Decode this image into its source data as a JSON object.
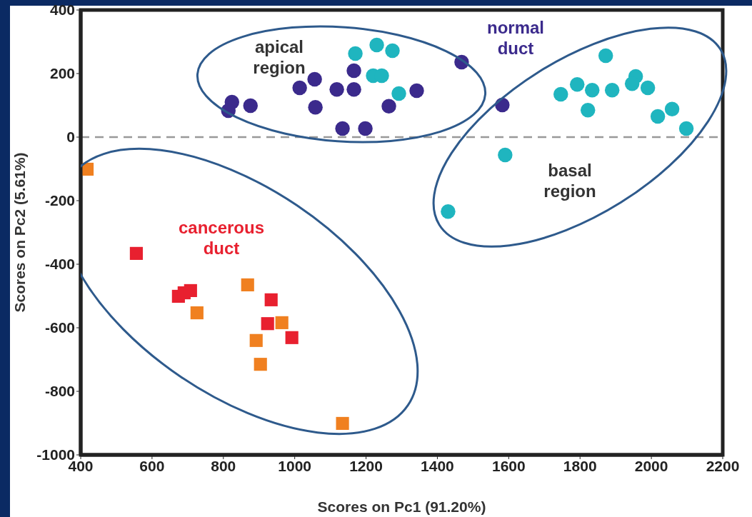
{
  "chart_data": {
    "type": "scatter",
    "xlabel": "Scores on Pc1 (91.20%)",
    "ylabel": "Scores on Pc2 (5.61%)",
    "xlim": [
      400,
      2200
    ],
    "xticks": [
      400,
      600,
      800,
      1000,
      1200,
      1400,
      1600,
      1800,
      2000,
      2200
    ],
    "ylim": [
      -1000,
      400
    ],
    "yticks": [
      -1000,
      -800,
      -600,
      -400,
      -200,
      0,
      200,
      400
    ],
    "grid": false,
    "legend": false,
    "series": [
      {
        "color": "#3b2a8c",
        "marker": "circle",
        "x": [
          824,
          814,
          876,
          1014,
          1056,
          1058,
          1118,
          1166,
          1166,
          1134,
          1198,
          1264,
          1342,
          1468,
          1582
        ],
        "values": [
          110,
          83,
          99,
          155,
          182,
          94,
          150,
          150,
          209,
          27,
          27,
          97,
          146,
          236,
          101
        ]
      },
      {
        "color": "#1fb5bf",
        "marker": "circle",
        "x": [
          1170,
          1230,
          1274,
          1220,
          1244,
          1292,
          1590,
          1430,
          1746,
          1792,
          1834,
          1822,
          1872,
          1890,
          1956,
          1946,
          1990,
          2018,
          2058,
          2098
        ],
        "values": [
          263,
          290,
          272,
          193,
          193,
          137,
          -56,
          -234,
          135,
          166,
          148,
          85,
          256,
          148,
          191,
          168,
          155,
          65,
          88,
          27
        ]
      },
      {
        "color": "#e8202f",
        "marker": "square",
        "x": [
          556,
          674,
          690,
          708,
          934,
          924,
          992
        ],
        "values": [
          -366,
          -501,
          -490,
          -483,
          -512,
          -587,
          -631
        ]
      },
      {
        "color": "#f08020",
        "marker": "square",
        "x": [
          418,
          726,
          868,
          964,
          892,
          904,
          1134
        ],
        "values": [
          -101,
          -553,
          -465,
          -584,
          -640,
          -715,
          -901
        ]
      }
    ],
    "ref_lines": [
      {
        "axis": "y",
        "value": 0,
        "color": "#999999",
        "line_style": "dashed"
      }
    ],
    "annotations": [
      "apical region",
      "normal duct",
      "basal region",
      "cancerous duct"
    ]
  }
}
